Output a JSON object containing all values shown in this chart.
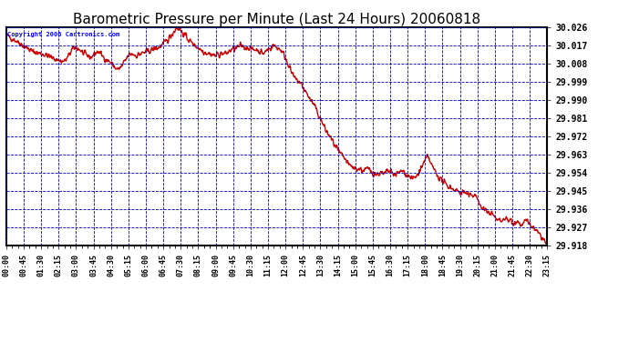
{
  "title": "Barometric Pressure per Minute (Last 24 Hours) 20060818",
  "title_fontsize": 11,
  "copyright_text": "Copyright 2006 Cartronics.com",
  "line_color": "#cc0000",
  "line_width": 1.0,
  "background_color": "#ffffff",
  "plot_bg_color": "#ffffff",
  "grid_color": "#0000bb",
  "grid_linestyle": "--",
  "grid_linewidth": 0.6,
  "ytick_labels": [
    "29.918",
    "29.927",
    "29.936",
    "29.945",
    "29.954",
    "29.963",
    "29.972",
    "29.981",
    "29.990",
    "29.999",
    "30.008",
    "30.017",
    "30.026"
  ],
  "ytick_values": [
    29.918,
    29.927,
    29.936,
    29.945,
    29.954,
    29.963,
    29.972,
    29.981,
    29.99,
    29.999,
    30.008,
    30.017,
    30.026
  ],
  "ymin": 29.918,
  "ymax": 30.026,
  "xtick_labels": [
    "00:00",
    "00:45",
    "01:30",
    "02:15",
    "03:00",
    "03:45",
    "04:30",
    "05:15",
    "06:00",
    "06:45",
    "07:30",
    "08:15",
    "09:00",
    "09:45",
    "10:30",
    "11:15",
    "12:00",
    "12:45",
    "13:30",
    "14:15",
    "15:00",
    "15:45",
    "16:30",
    "17:15",
    "18:00",
    "18:45",
    "19:30",
    "20:15",
    "21:00",
    "21:45",
    "22:30",
    "23:15"
  ],
  "total_minutes": 1440
}
